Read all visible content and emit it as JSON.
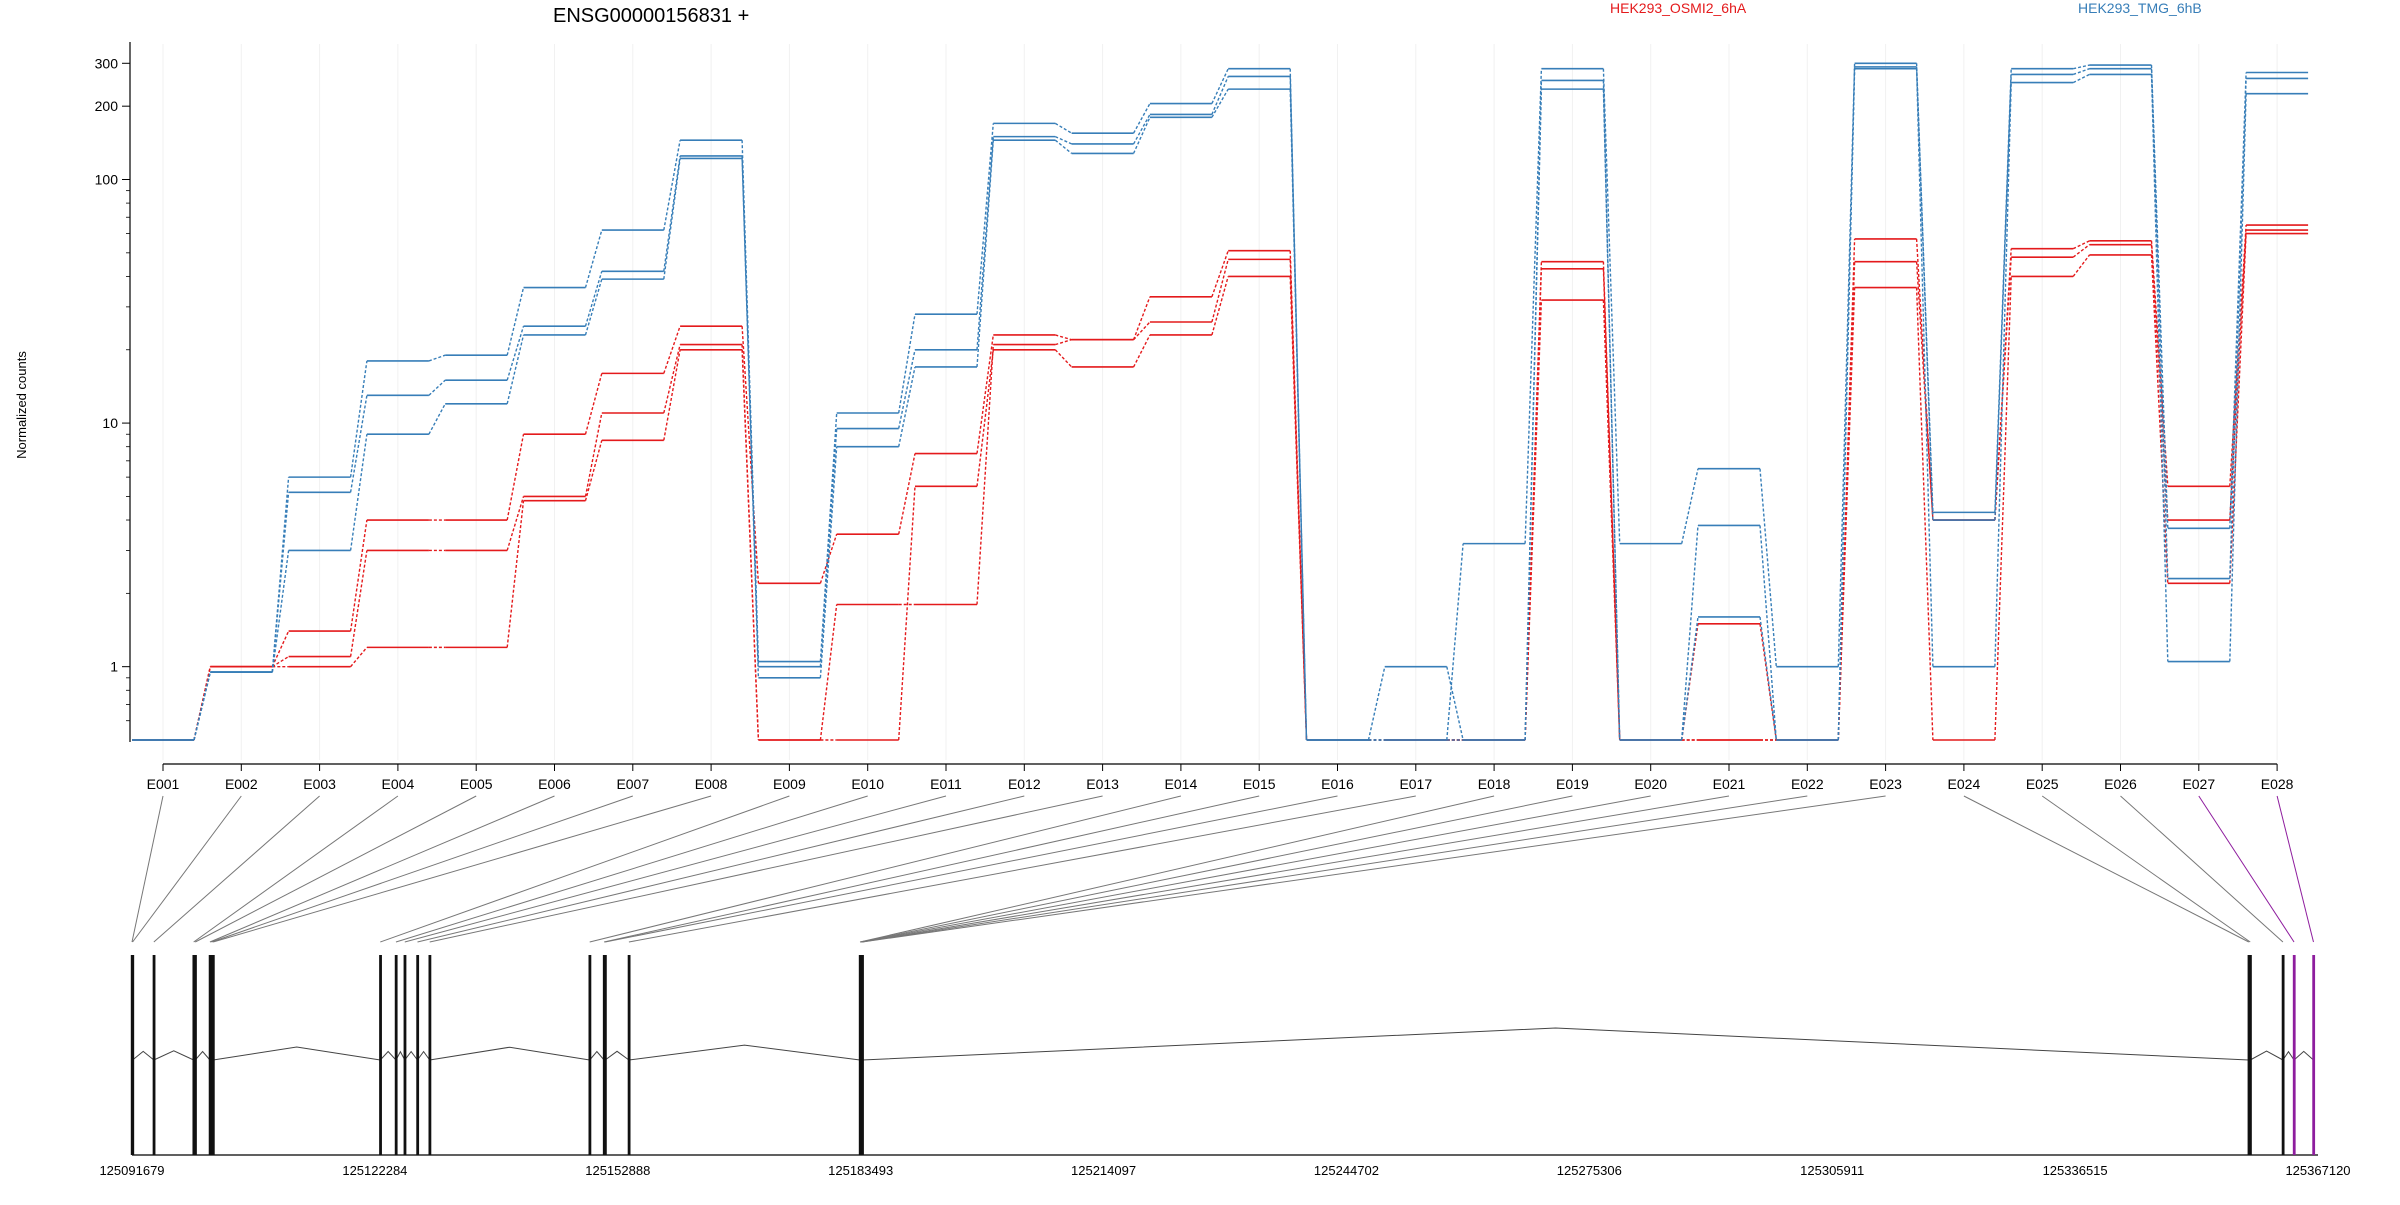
{
  "chart_data": {
    "type": "line",
    "title": "ENSG00000156831 +",
    "ylabel": "Normalized counts",
    "yscale": "log",
    "ylim": [
      0.5,
      360
    ],
    "yticks": [
      1,
      10,
      100,
      200,
      300
    ],
    "ytick_labels": [
      "1",
      "10",
      "100",
      "200",
      "300"
    ],
    "categories": [
      "E001",
      "E002",
      "E003",
      "E004",
      "E005",
      "E006",
      "E007",
      "E008",
      "E009",
      "E010",
      "E011",
      "E012",
      "E013",
      "E014",
      "E015",
      "E016",
      "E017",
      "E018",
      "E019",
      "E020",
      "E021",
      "E022",
      "E023",
      "E024",
      "E025",
      "E026",
      "E027",
      "E028"
    ],
    "legend": [
      "HEK293_OSMI2_6hA",
      "HEK293_TMG_6hB"
    ],
    "legend_placement": "top",
    "colors": {
      "HEK293_OSMI2_6hA": "#e41a1c",
      "HEK293_TMG_6hB": "#377eb8"
    },
    "series": [
      {
        "group": "HEK293_OSMI2_6hA",
        "values": [
          0.5,
          1.0,
          1.4,
          4.0,
          4.0,
          9.0,
          16,
          25,
          2.2,
          3.5,
          7.5,
          23,
          22,
          33,
          51,
          0.5,
          0.5,
          0.5,
          46,
          0.5,
          0.5,
          0.5,
          57,
          4.0,
          52,
          56,
          5.5,
          65
        ]
      },
      {
        "group": "HEK293_OSMI2_6hA",
        "values": [
          0.5,
          1.0,
          1.1,
          3.0,
          3.0,
          5.0,
          11,
          21,
          0.5,
          1.8,
          1.8,
          21,
          22,
          26,
          47,
          0.5,
          0.5,
          0.5,
          43,
          0.5,
          1.5,
          0.5,
          46,
          4.0,
          48,
          54,
          4.0,
          62
        ]
      },
      {
        "group": "HEK293_OSMI2_6hA",
        "values": [
          0.5,
          1.0,
          1.0,
          1.2,
          1.2,
          4.8,
          8.5,
          20,
          0.5,
          0.5,
          5.5,
          20,
          17,
          23,
          40,
          0.5,
          0.5,
          0.5,
          32,
          0.5,
          0.5,
          0.5,
          36,
          0.5,
          40,
          49,
          2.2,
          60
        ]
      },
      {
        "group": "HEK293_TMG_6hB",
        "values": [
          0.5,
          0.95,
          6.0,
          18,
          19,
          36,
          62,
          145,
          1.05,
          11,
          28,
          170,
          155,
          205,
          285,
          0.5,
          0.5,
          3.2,
          285,
          3.2,
          6.5,
          1.0,
          300,
          4.3,
          285,
          295,
          3.7,
          275
        ]
      },
      {
        "group": "HEK293_TMG_6hB",
        "values": [
          0.5,
          0.95,
          5.2,
          13,
          15,
          25,
          42,
          125,
          1.0,
          9.5,
          20,
          150,
          140,
          185,
          265,
          0.5,
          1.0,
          0.5,
          255,
          0.5,
          3.8,
          0.5,
          290,
          4.0,
          270,
          285,
          2.3,
          260
        ]
      },
      {
        "group": "HEK293_TMG_6hB",
        "values": [
          0.5,
          0.95,
          3.0,
          9.0,
          12,
          23,
          39,
          122,
          0.9,
          8.0,
          17,
          145,
          128,
          180,
          235,
          0.5,
          0.5,
          0.5,
          235,
          0.5,
          1.6,
          0.5,
          285,
          1.0,
          250,
          270,
          1.05,
          225
        ]
      }
    ],
    "gene_model": {
      "coordinate_ticks": [
        "125091679",
        "125122284",
        "125152888",
        "125183493",
        "125214097",
        "125244702",
        "125275306",
        "125305911",
        "125336515",
        "125367120"
      ],
      "coordinate_values": [
        125091679,
        125122284,
        125152888,
        125183493,
        125214097,
        125244702,
        125275306,
        125305911,
        125336515,
        125367120
      ],
      "exon_positions": [
        125091679,
        125091750,
        125094432,
        125099450,
        125099650,
        125101500,
        125101700,
        125101900,
        125122970,
        125124940,
        125126050,
        125127650,
        125129190,
        125149350,
        125151160,
        125151300,
        125154290,
        125183410,
        125183460,
        125183520,
        125183580,
        125183640,
        125183700,
        125358400,
        125358580,
        125362700,
        125364100,
        125366550
      ],
      "highlighted_exons": [
        "E027",
        "E028"
      ],
      "highlight_color": "#8e1d9e"
    }
  }
}
